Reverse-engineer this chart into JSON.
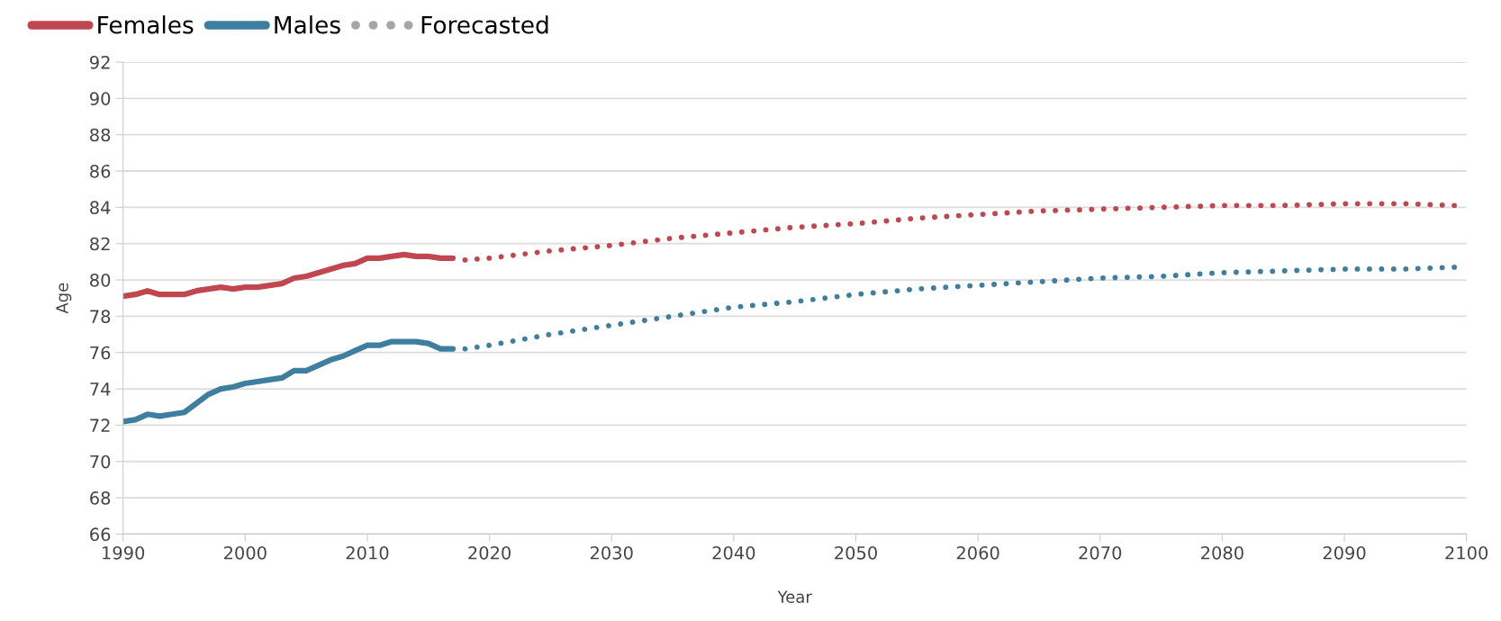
{
  "chart_data": {
    "type": "line",
    "xlabel": "Year",
    "ylabel": "Age",
    "xlim": [
      1990,
      2100
    ],
    "xticks": [
      1990,
      2000,
      2010,
      2020,
      2030,
      2040,
      2050,
      2060,
      2070,
      2080,
      2090,
      2100
    ],
    "ylim": [
      66,
      92
    ],
    "yticks": [
      66,
      68,
      70,
      72,
      74,
      76,
      78,
      80,
      82,
      84,
      86,
      88,
      90,
      92
    ],
    "grid": "y",
    "legend": "top left",
    "marker": "none",
    "series": [
      {
        "name": "Females",
        "color": "#c0474f",
        "line_style": "solid",
        "x": [
          1990,
          1991,
          1992,
          1993,
          1994,
          1995,
          1996,
          1997,
          1998,
          1999,
          2000,
          2001,
          2002,
          2003,
          2004,
          2005,
          2006,
          2007,
          2008,
          2009,
          2010,
          2011,
          2012,
          2013,
          2014,
          2015,
          2016,
          2017
        ],
        "values": [
          79.1,
          79.2,
          79.4,
          79.2,
          79.2,
          79.2,
          79.4,
          79.5,
          79.6,
          79.5,
          79.6,
          79.6,
          79.7,
          79.8,
          80.1,
          80.2,
          80.4,
          80.6,
          80.8,
          80.9,
          81.2,
          81.2,
          81.3,
          81.4,
          81.3,
          81.3,
          81.2,
          81.2
        ]
      },
      {
        "name": "Males",
        "color": "#3e7fa0",
        "line_style": "solid",
        "x": [
          1990,
          1991,
          1992,
          1993,
          1994,
          1995,
          1996,
          1997,
          1998,
          1999,
          2000,
          2001,
          2002,
          2003,
          2004,
          2005,
          2006,
          2007,
          2008,
          2009,
          2010,
          2011,
          2012,
          2013,
          2014,
          2015,
          2016,
          2017
        ],
        "values": [
          72.2,
          72.3,
          72.6,
          72.5,
          72.6,
          72.7,
          73.2,
          73.7,
          74.0,
          74.1,
          74.3,
          74.4,
          74.5,
          74.6,
          75.0,
          75.0,
          75.3,
          75.6,
          75.8,
          76.1,
          76.4,
          76.4,
          76.6,
          76.6,
          76.6,
          76.5,
          76.2,
          76.2
        ]
      },
      {
        "name": "Forecasted",
        "color": "#a6a6a6",
        "line_style": "dotted"
      },
      {
        "color": "#c0474f",
        "line_style": "dotted",
        "x": [
          2018,
          2020,
          2025,
          2030,
          2035,
          2040,
          2045,
          2050,
          2055,
          2060,
          2065,
          2070,
          2075,
          2080,
          2085,
          2090,
          2095,
          2099
        ],
        "values": [
          81.1,
          81.2,
          81.6,
          81.9,
          82.3,
          82.6,
          82.9,
          83.1,
          83.4,
          83.6,
          83.8,
          83.9,
          84.0,
          84.1,
          84.1,
          84.2,
          84.2,
          84.1
        ]
      },
      {
        "color": "#3e7fa0",
        "line_style": "dotted",
        "x": [
          2018,
          2020,
          2025,
          2030,
          2035,
          2040,
          2045,
          2050,
          2055,
          2060,
          2065,
          2070,
          2075,
          2080,
          2085,
          2090,
          2095,
          2099
        ],
        "values": [
          76.2,
          76.4,
          77.0,
          77.5,
          78.0,
          78.5,
          78.8,
          79.2,
          79.5,
          79.7,
          79.9,
          80.1,
          80.2,
          80.4,
          80.5,
          80.6,
          80.6,
          80.7
        ]
      }
    ]
  }
}
